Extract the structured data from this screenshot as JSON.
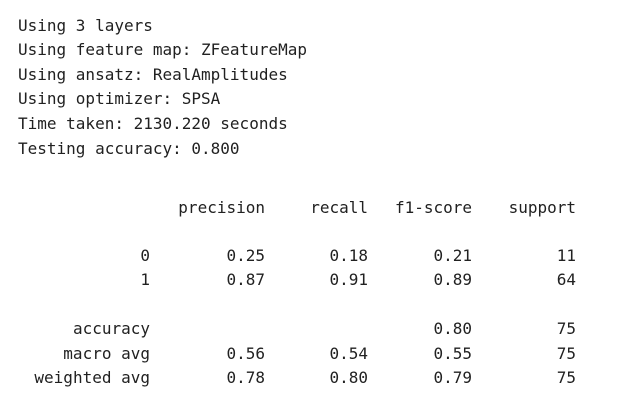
{
  "log_lines": [
    "Using 3 layers",
    "Using feature map: ZFeatureMap",
    "Using ansatz: RealAmplitudes",
    "Using optimizer: SPSA",
    "Time taken: 2130.220 seconds",
    "Testing accuracy: 0.800"
  ],
  "report": {
    "headers": {
      "precision": "precision",
      "recall": "recall",
      "f1": "f1-score",
      "support": "support"
    },
    "rows": [
      {
        "label": "0",
        "precision": "0.25",
        "recall": "0.18",
        "f1": "0.21",
        "support": "11"
      },
      {
        "label": "1",
        "precision": "0.87",
        "recall": "0.91",
        "f1": "0.89",
        "support": "64"
      },
      {
        "label": "accuracy",
        "precision": "",
        "recall": "",
        "f1": "0.80",
        "support": "75"
      },
      {
        "label": "macro avg",
        "precision": "0.56",
        "recall": "0.54",
        "f1": "0.55",
        "support": "75"
      },
      {
        "label": "weighted avg",
        "precision": "0.78",
        "recall": "0.80",
        "f1": "0.79",
        "support": "75"
      }
    ]
  }
}
